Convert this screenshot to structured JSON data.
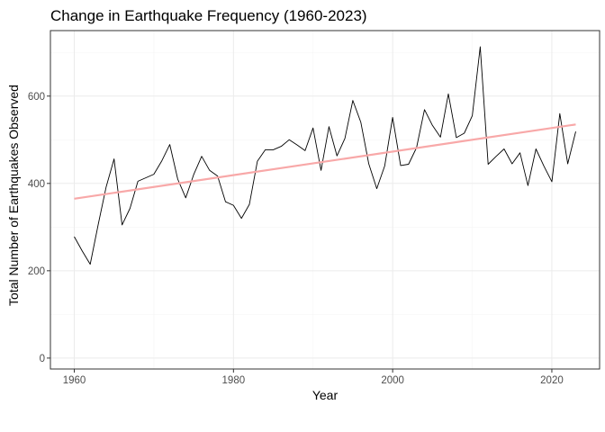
{
  "chart_data": {
    "type": "line",
    "title": "Change in Earthquake Frequency (1960-2023)",
    "xlabel": "Year",
    "ylabel": "Total Number of Earthquakes Observed",
    "xlim": [
      1957,
      2026
    ],
    "ylim": [
      -25,
      750
    ],
    "x_ticks": [
      1960,
      1980,
      2000,
      2020
    ],
    "y_ticks": [
      0,
      200,
      400,
      600
    ],
    "x_tick_labels": [
      "1960",
      "1980",
      "2000",
      "2020"
    ],
    "y_tick_labels": [
      "0",
      "200",
      "400",
      "600"
    ],
    "grid": true,
    "legend": "none",
    "series": [
      {
        "type": "line",
        "color": "#000000",
        "x": [
          1960,
          1961,
          1962,
          1963,
          1964,
          1965,
          1966,
          1967,
          1968,
          1969,
          1970,
          1971,
          1972,
          1973,
          1974,
          1975,
          1976,
          1977,
          1978,
          1979,
          1980,
          1981,
          1982,
          1983,
          1984,
          1985,
          1986,
          1987,
          1988,
          1989,
          1990,
          1991,
          1992,
          1993,
          1994,
          1995,
          1996,
          1997,
          1998,
          1999,
          2000,
          2001,
          2002,
          2003,
          2004,
          2005,
          2006,
          2007,
          2008,
          2009,
          2010,
          2011,
          2012,
          2013,
          2014,
          2015,
          2016,
          2017,
          2018,
          2019,
          2020,
          2021,
          2022,
          2023
        ],
        "y": [
          278,
          245,
          215,
          305,
          392,
          456,
          305,
          343,
          405,
          413,
          421,
          452,
          489,
          410,
          367,
          420,
          462,
          430,
          417,
          358,
          350,
          320,
          352,
          451,
          477,
          477,
          485,
          500,
          488,
          475,
          527,
          430,
          530,
          463,
          503,
          590,
          540,
          445,
          388,
          440,
          551,
          441,
          444,
          482,
          569,
          533,
          506,
          605,
          505,
          515,
          555,
          713,
          444,
          462,
          479,
          445,
          470,
          395,
          479,
          440,
          404,
          560,
          445,
          519
        ]
      },
      {
        "type": "trend",
        "color": "#f8a8a8",
        "x": [
          1960,
          2023
        ],
        "y": [
          365,
          535
        ]
      }
    ]
  }
}
